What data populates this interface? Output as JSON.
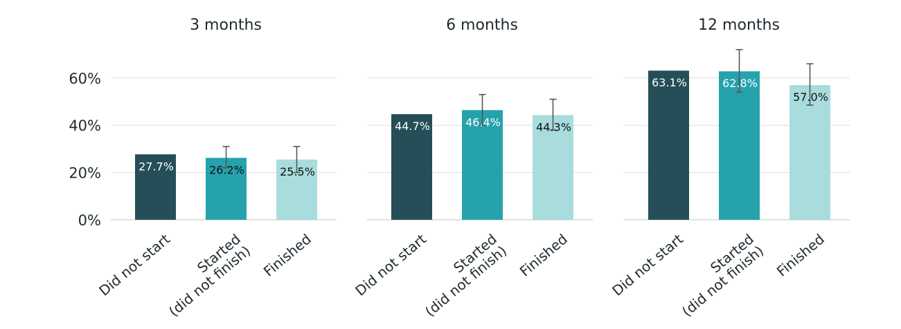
{
  "chart_data": {
    "type": "bar",
    "categories": [
      "Did not start",
      "Started\n(did not finish)",
      "Finished"
    ],
    "colors": [
      "#254e58",
      "#26a2ad",
      "#a8dcdd"
    ],
    "ylim": [
      0,
      70
    ],
    "yticks": [
      0,
      20,
      40,
      60
    ],
    "ytick_labels": [
      "0%",
      "20%",
      "40%",
      "60%"
    ],
    "grid": true,
    "panels": [
      {
        "title": "3 months",
        "values": [
          27.7,
          26.2,
          25.5
        ],
        "labels": [
          "27.7%",
          "26.2%",
          "25.5%"
        ],
        "errors": [
          null,
          [
            22.0,
            31.0
          ],
          [
            20.0,
            31.0
          ]
        ]
      },
      {
        "title": "6 months",
        "values": [
          44.7,
          46.4,
          44.3
        ],
        "labels": [
          "44.7%",
          "46.4%",
          "44.3%"
        ],
        "errors": [
          null,
          [
            40.0,
            53.0
          ],
          [
            38.0,
            51.0
          ]
        ]
      },
      {
        "title": "12 months",
        "values": [
          63.1,
          62.8,
          57.0
        ],
        "labels": [
          "63.1%",
          "62.8%",
          "57.0%"
        ],
        "errors": [
          null,
          [
            54.0,
            72.0
          ],
          [
            48.5,
            66.0
          ]
        ]
      }
    ]
  }
}
